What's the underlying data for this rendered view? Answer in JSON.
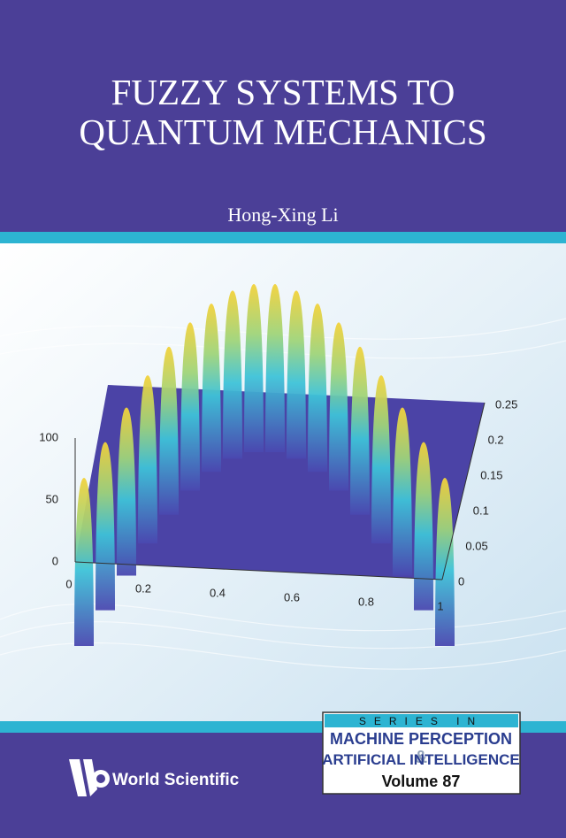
{
  "cover": {
    "title_lines": [
      "FUZZY SYSTEMS TO",
      "QUANTUM MECHANICS"
    ],
    "author": "Hong-Xing Li",
    "plot": {
      "z_ticks": [
        100,
        50,
        0
      ],
      "x_ticks": [
        0,
        0.2,
        0.4,
        0.6,
        0.8,
        1
      ],
      "y_ticks": [
        0.25,
        0.2,
        0.15,
        0.1,
        0.05,
        0
      ]
    },
    "series": {
      "label": "SERIES IN",
      "line1": "MACHINE PERCEPTION",
      "ampersand": "&",
      "line2": "ARTIFICIAL INTELLIGENCE",
      "volume": "Volume 87"
    },
    "publisher": "World Scientific"
  }
}
